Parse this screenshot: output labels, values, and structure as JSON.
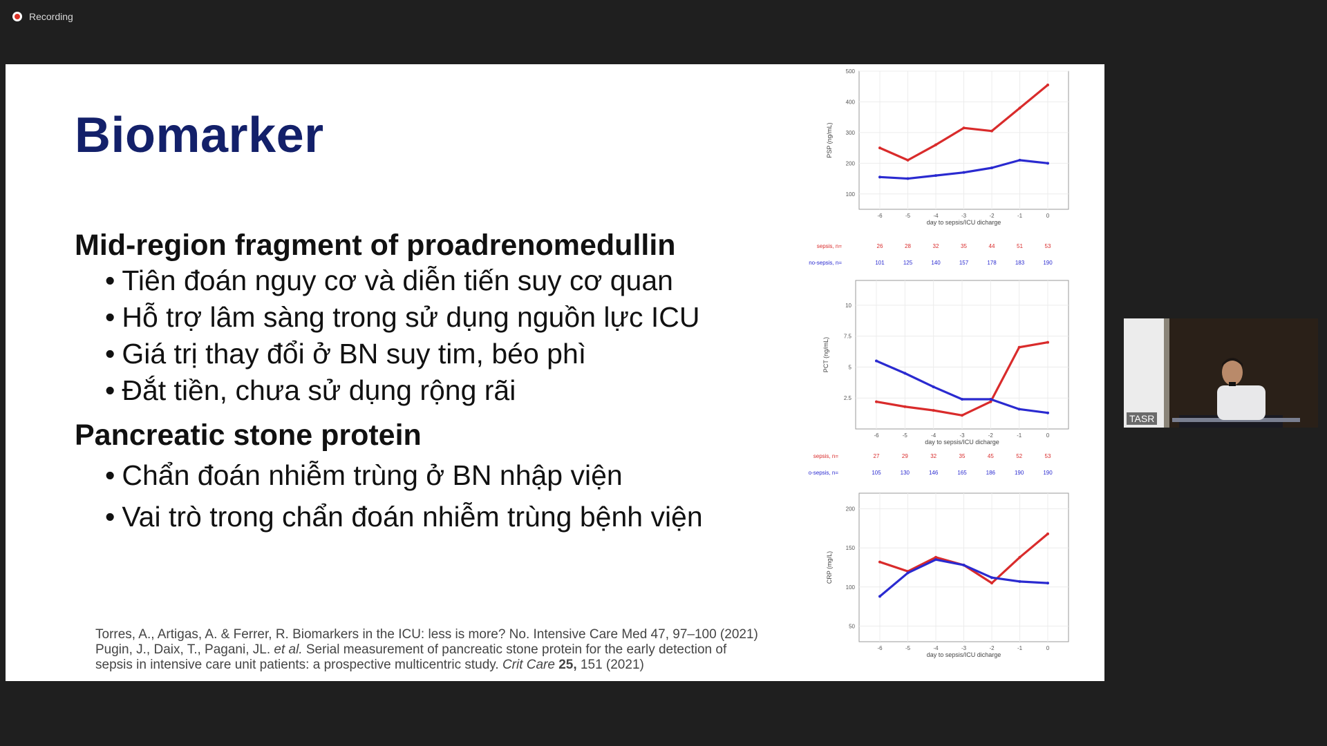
{
  "recording": {
    "label": "Recording"
  },
  "slide": {
    "title": "Biomarker",
    "sections": [
      {
        "heading": "Mid-region fragment of proadrenomedullin",
        "bullets": [
          "Tiên đoán nguy cơ và diễn tiến suy cơ quan",
          "Hỗ trợ lâm sàng trong sử dụng nguồn lực ICU",
          "Giá trị thay đổi ở BN suy tim, béo phì",
          "Đắt tiền, chưa sử dụng rộng rãi"
        ]
      },
      {
        "heading": "Pancreatic stone protein",
        "bullets": [
          "Chẩn đoán nhiễm trùng ở BN nhập viện",
          "Vai trò trong chẩn đoán nhiễm trùng bệnh viện"
        ]
      }
    ],
    "bullet_char": "•",
    "references": {
      "line1": "Torres, A., Artigas, A. & Ferrer, R. Biomarkers in the ICU: less is more? No. Intensive Care Med 47, 97–100 (2021)",
      "line2_a": "Pugin, J., Daix, T., Pagani, JL. ",
      "line2_b": "et al.",
      "line2_c": " Serial measurement of pancreatic stone protein for the early detection of",
      "line3_a": "sepsis in intensive care unit patients: a prospective multicentric study. ",
      "line3_b": "Crit Care",
      "line3_c": " 25,",
      "line3_d": " 151 (2021)"
    }
  },
  "chart_data": [
    {
      "type": "line",
      "ylabel": "PSP (ng/mL)",
      "xlabel": "day to sepsis/ICU dicharge",
      "x": [
        -6,
        -5,
        -4,
        -3,
        -2,
        -1,
        0
      ],
      "ylim": [
        50,
        500
      ],
      "yticks": [
        100,
        200,
        300,
        400,
        500
      ],
      "series": [
        {
          "color": "#d92b2b",
          "values": [
            250,
            210,
            260,
            315,
            305,
            380,
            455
          ]
        },
        {
          "color": "#2a2ad0",
          "values": [
            155,
            150,
            160,
            170,
            185,
            210,
            200
          ]
        }
      ],
      "counts": [
        {
          "label": "sepsis, n=",
          "color": "#d92b2b",
          "values": [
            26,
            28,
            32,
            35,
            44,
            51,
            53
          ]
        },
        {
          "label": "no-sepsis, n=",
          "color": "#2a2ad0",
          "values": [
            101,
            125,
            140,
            157,
            178,
            183,
            190
          ]
        }
      ]
    },
    {
      "type": "line",
      "ylabel": "PCT (ng/mL)",
      "xlabel": "day to sepsis/ICU dicharge",
      "x": [
        -6,
        -5,
        -4,
        -3,
        -2,
        -1,
        0
      ],
      "ylim": [
        0,
        12
      ],
      "yticks": [
        2.5,
        5.0,
        7.5,
        10.0
      ],
      "series": [
        {
          "color": "#d92b2b",
          "values": [
            2.2,
            1.8,
            1.5,
            1.1,
            2.2,
            6.6,
            7.0
          ]
        },
        {
          "color": "#2a2ad0",
          "values": [
            5.5,
            4.5,
            3.4,
            2.4,
            2.4,
            1.6,
            1.3
          ]
        }
      ],
      "counts": [
        {
          "label": "sepsis, n=",
          "color": "#d92b2b",
          "values": [
            27,
            29,
            32,
            35,
            45,
            52,
            53
          ]
        },
        {
          "label": "o-sepsis, n=",
          "color": "#2a2ad0",
          "values": [
            105,
            130,
            146,
            165,
            186,
            190,
            190
          ]
        }
      ]
    },
    {
      "type": "line",
      "ylabel": "CRP (mg/L)",
      "xlabel": "day to sepsis/ICU dicharge",
      "x": [
        -6,
        -5,
        -4,
        -3,
        -2,
        -1,
        0
      ],
      "ylim": [
        30,
        220
      ],
      "yticks": [
        50,
        100,
        150,
        200
      ],
      "series": [
        {
          "color": "#d92b2b",
          "values": [
            132,
            120,
            138,
            128,
            105,
            138,
            168
          ]
        },
        {
          "color": "#2a2ad0",
          "values": [
            88,
            118,
            135,
            128,
            112,
            107,
            105
          ]
        }
      ]
    }
  ],
  "speaker": {
    "name": "TASR"
  }
}
